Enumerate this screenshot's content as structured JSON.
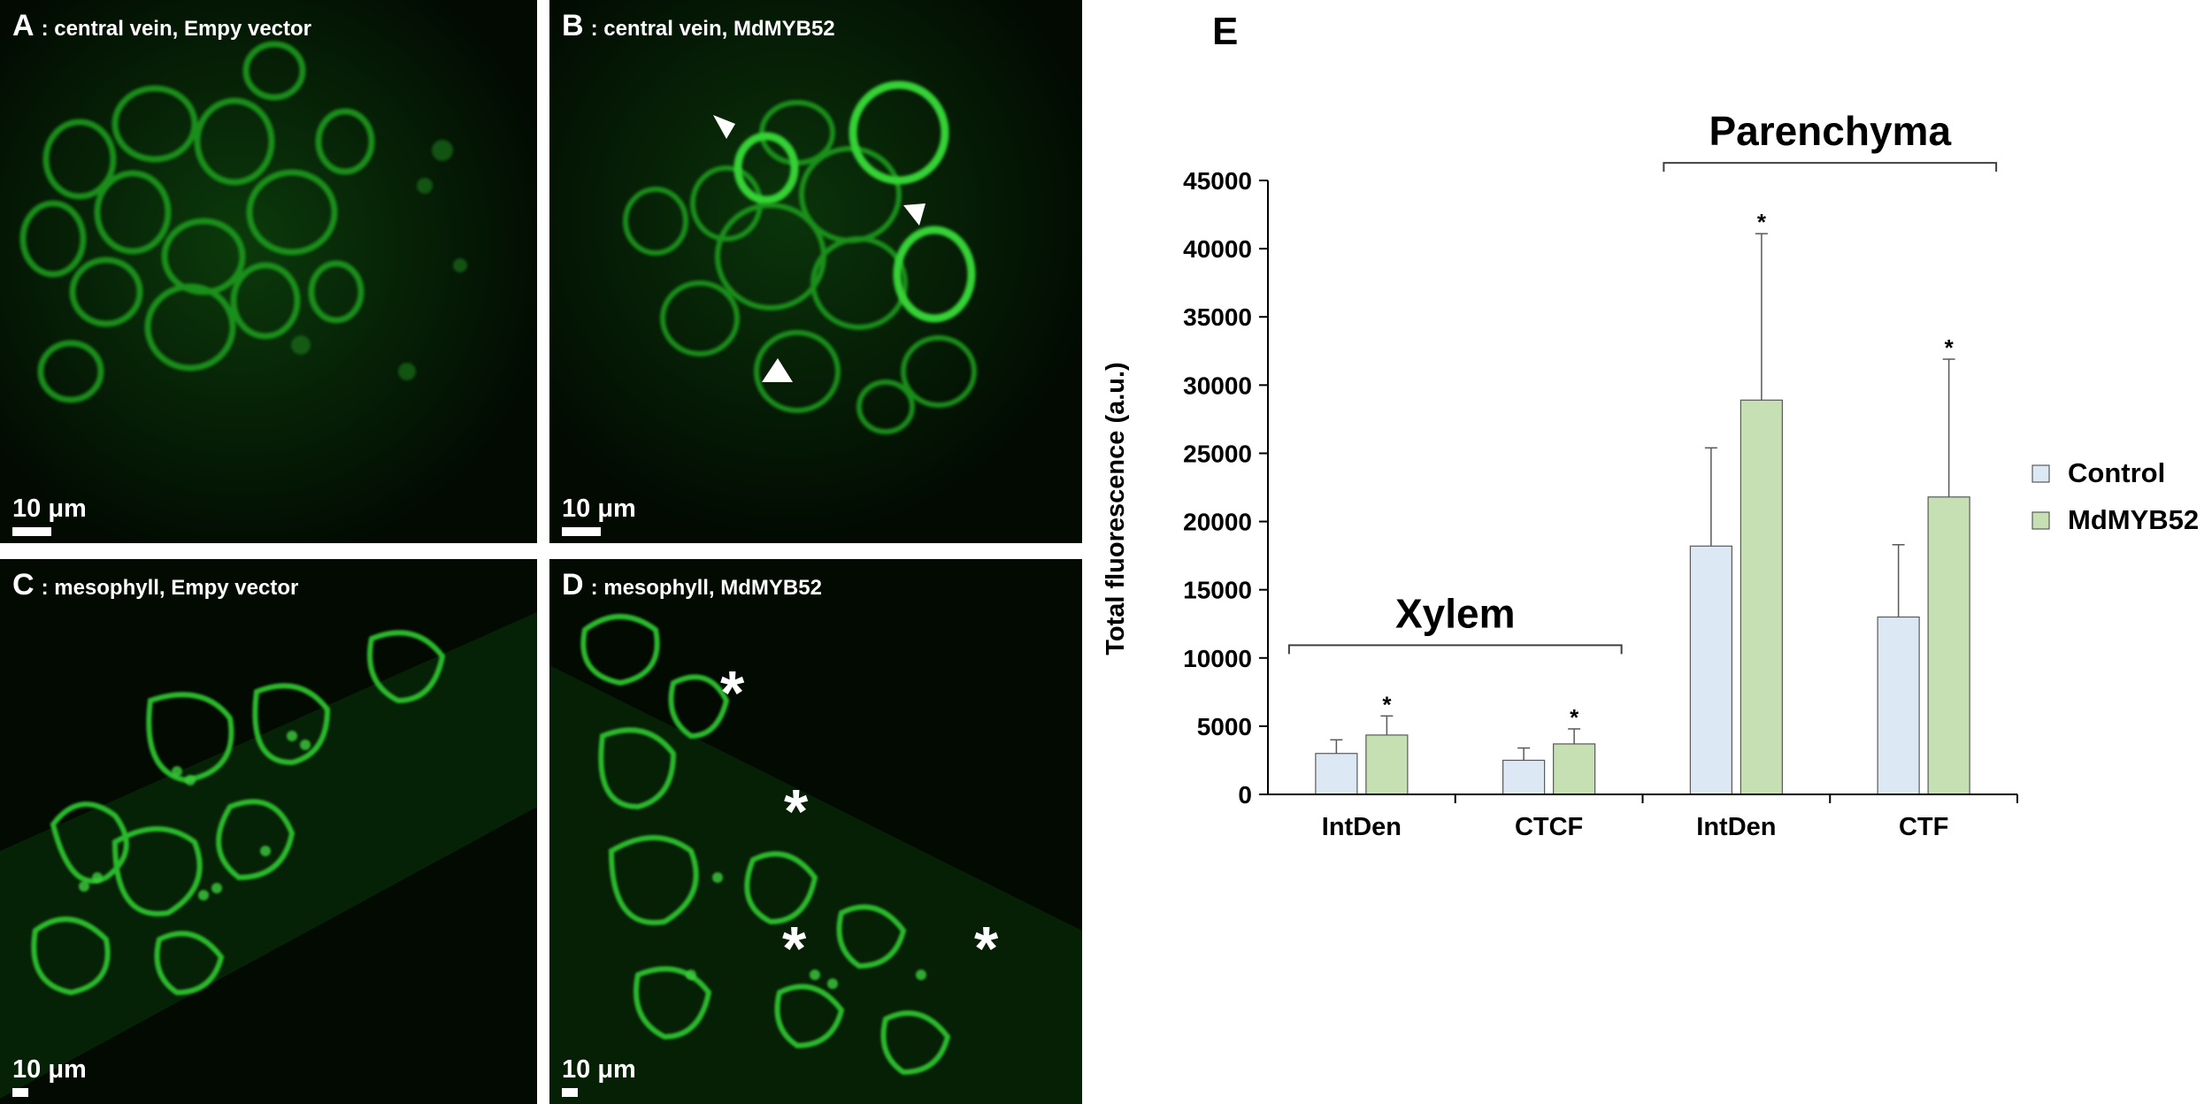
{
  "panels": {
    "a": {
      "letter": "A",
      "desc": ": central vein, Empy vector",
      "scale": "10 μm"
    },
    "b": {
      "letter": "B",
      "desc": ": central vein, MdMYB52",
      "scale": "10 μm"
    },
    "c": {
      "letter": "C",
      "desc": ": mesophyll, Empy vector",
      "scale": "10 μm"
    },
    "d": {
      "letter": "D",
      "desc": ": mesophyll, MdMYB52",
      "scale": "10 μm",
      "markers": [
        "*",
        "*",
        "*",
        "*"
      ]
    }
  },
  "chart_data": {
    "panel_letter": "E",
    "type": "bar",
    "ylabel": "Total fluorescence (a.u.)",
    "ylim": [
      0,
      45000
    ],
    "yticks": [
      0,
      5000,
      10000,
      15000,
      20000,
      25000,
      30000,
      35000,
      40000,
      45000
    ],
    "categories": [
      "IntDen",
      "CTCF",
      "IntDen",
      "CTF"
    ],
    "groups": [
      {
        "label": "Xylem",
        "categories": [
          0,
          1
        ]
      },
      {
        "label": "Parenchyma",
        "categories": [
          2,
          3
        ]
      }
    ],
    "series": [
      {
        "name": "Control",
        "color": "#dce8f4",
        "values": [
          3000,
          2500,
          18200,
          13000
        ],
        "errors": [
          1000,
          900,
          7200,
          5300
        ]
      },
      {
        "name": "MdMYB52",
        "color": "#c6e0b4",
        "values": [
          4350,
          3700,
          28900,
          21800
        ],
        "errors": [
          1400,
          1100,
          12200,
          10100
        ]
      }
    ],
    "significance": [
      [
        null,
        null,
        null,
        null
      ],
      [
        "*",
        "*",
        "*",
        "*"
      ]
    ],
    "legend_position": "right",
    "grid": false
  }
}
